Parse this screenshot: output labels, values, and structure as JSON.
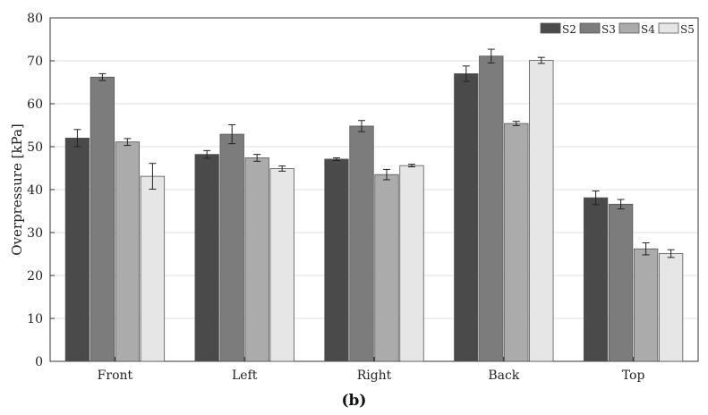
{
  "chart_data": {
    "type": "bar",
    "categories": [
      "Front",
      "Left",
      "Right",
      "Back",
      "Top"
    ],
    "series": [
      {
        "name": "S2",
        "color": "#4a4a4a",
        "values": [
          52.0,
          48.2,
          47.1,
          67.0,
          38.1
        ],
        "errors": [
          2.0,
          0.9,
          0.3,
          1.8,
          1.6
        ]
      },
      {
        "name": "S3",
        "color": "#7c7c7c",
        "values": [
          66.2,
          52.9,
          54.8,
          71.1,
          36.6
        ],
        "errors": [
          0.8,
          2.2,
          1.3,
          1.6,
          1.1
        ]
      },
      {
        "name": "S4",
        "color": "#ababab",
        "values": [
          51.1,
          47.4,
          43.5,
          55.4,
          26.2
        ],
        "errors": [
          0.8,
          0.8,
          1.2,
          0.5,
          1.4
        ]
      },
      {
        "name": "S5",
        "color": "#e6e6e6",
        "values": [
          43.1,
          44.9,
          45.6,
          70.1,
          25.1
        ],
        "errors": [
          3.0,
          0.6,
          0.3,
          0.7,
          0.9
        ]
      }
    ],
    "ylabel": "Overpressure [kPa]",
    "xlabel": "",
    "ylim": [
      0,
      80
    ],
    "yticks": [
      0,
      10,
      20,
      30,
      40,
      50,
      60,
      70,
      80
    ],
    "grid": true,
    "legend_position": "top-right",
    "caption": "(b)"
  }
}
